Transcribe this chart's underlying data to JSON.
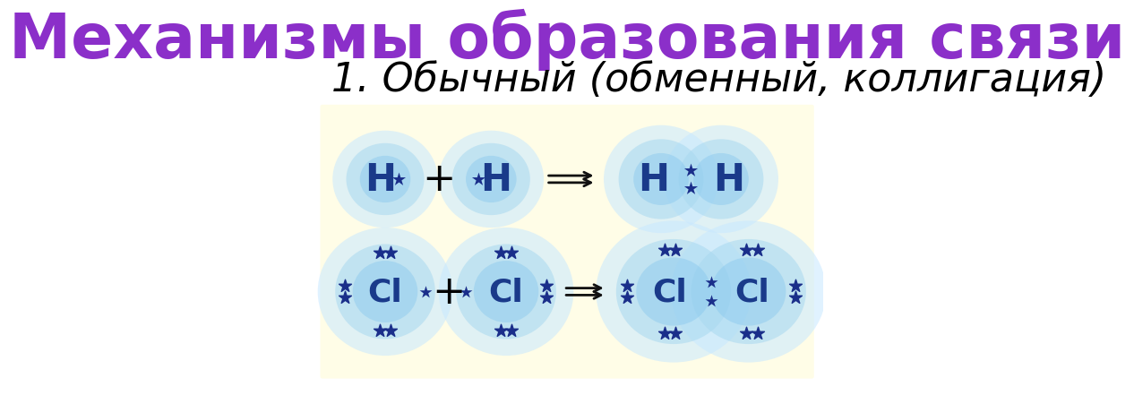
{
  "title": "Механизмы образования связи",
  "subtitle": "1. Обычный (обменный, коллигация)",
  "title_color": "#8B2FC9",
  "subtitle_color": "#000000",
  "bg_color": "#ffffff",
  "panel_color": "#FFFDE7",
  "atom_cloud_color_outer": "#C8E8FF",
  "atom_cloud_color_inner": "#7EC8F0",
  "dot_color": "#1a2e8a",
  "label_color": "#1a3a8a",
  "arrow_color": "#111111",
  "title_fontsize": 50,
  "subtitle_fontsize": 32
}
